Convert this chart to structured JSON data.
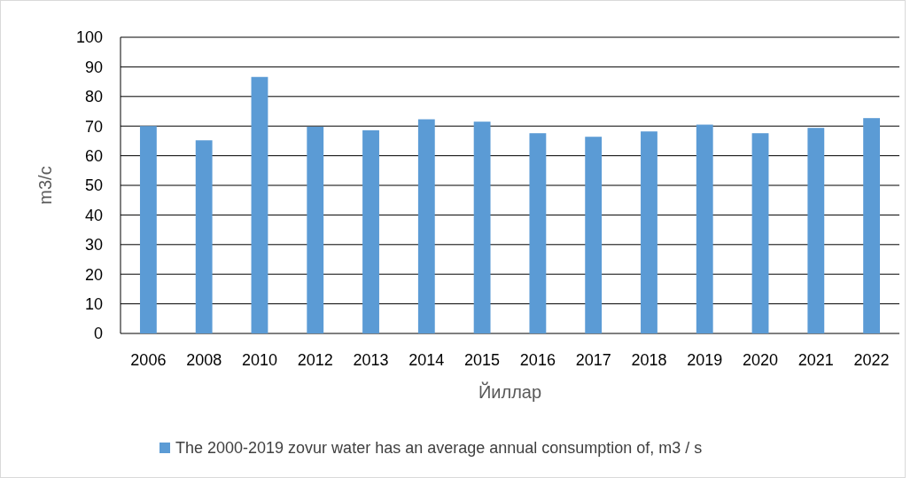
{
  "chart_data": {
    "type": "bar",
    "xlabel": "Йиллар",
    "ylabel": "m3/c",
    "categories": [
      "2006",
      "2008",
      "2010",
      "2012",
      "2013",
      "2014",
      "2015",
      "2016",
      "2017",
      "2018",
      "2019",
      "2020",
      "2021",
      "2022"
    ],
    "series": [
      {
        "name": "The 2000-2019 zovur water has an average annual consumption of, m3 / s",
        "color": "#5b9bd5",
        "values": [
          70.0,
          65.2,
          86.6,
          69.8,
          68.6,
          72.3,
          71.5,
          67.6,
          66.4,
          68.2,
          70.5,
          67.6,
          69.4,
          72.7
        ]
      }
    ],
    "ylim": [
      0,
      100
    ],
    "yticks": [
      0,
      10,
      20,
      30,
      40,
      50,
      60,
      70,
      80,
      90,
      100
    ],
    "grid": "y",
    "legend": "bottom"
  }
}
